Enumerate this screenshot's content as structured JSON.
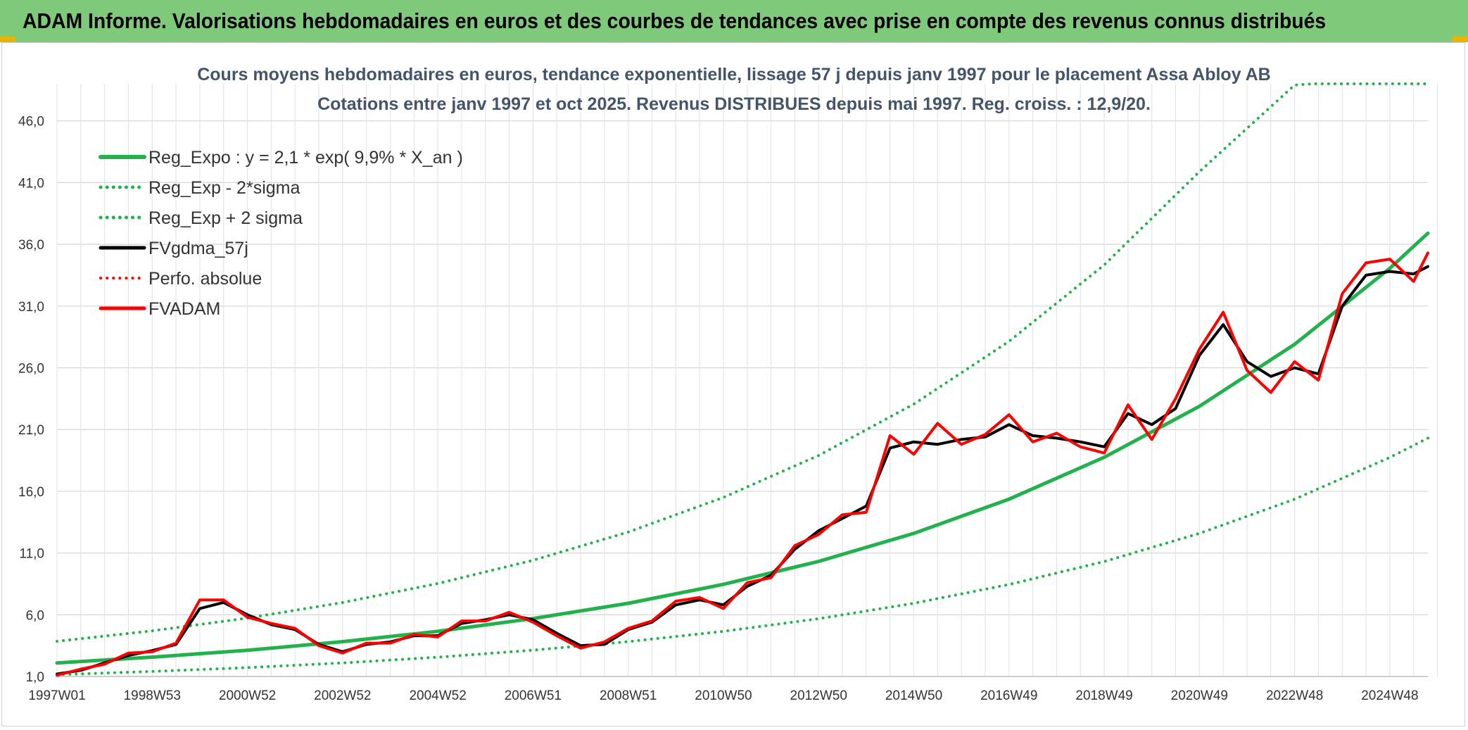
{
  "header": {
    "title": "ADAM Informe. Valorisations hebdomadaires en euros et des courbes de tendances avec prise en compte des revenus connus distribués",
    "background": "#7fc97a"
  },
  "chart_data": {
    "type": "line",
    "title": "Cours moyens hebdomadaires en euros, tendance exponentielle, lissage 57 j depuis janv 1997 pour le placement Assa Abloy AB",
    "subtitle": "Cotations entre janv 1997 et oct 2025. Revenus DISTRIBUES depuis mai 1997. Reg. croiss. : 12,9/20.",
    "xlabel": "",
    "ylabel": "",
    "x_range": [
      1997.0,
      2025.8
    ],
    "ylim": [
      1.0,
      49.0
    ],
    "grid": true,
    "legend_position": "top-left",
    "y_ticks": [
      "1,0",
      "6,0",
      "11,0",
      "16,0",
      "21,0",
      "26,0",
      "31,0",
      "36,0",
      "41,0",
      "46,0"
    ],
    "y_tick_values": [
      1,
      6,
      11,
      16,
      21,
      26,
      31,
      36,
      41,
      46
    ],
    "x_ticks": [
      "1997W01",
      "1998W53",
      "2000W52",
      "2002W52",
      "2004W52",
      "2006W51",
      "2008W51",
      "2010W50",
      "2012W50",
      "2014W50",
      "2016W49",
      "2018W49",
      "2020W49",
      "2022W48",
      "2024W48"
    ],
    "x_tick_values": [
      1997.0,
      1999.0,
      2001.0,
      2003.0,
      2005.0,
      2007.0,
      2009.0,
      2011.0,
      2013.0,
      2015.0,
      2017.0,
      2019.0,
      2021.0,
      2023.0,
      2025.0
    ],
    "series": [
      {
        "name": "Reg_Expo : y = 2,1 * exp( 9,9% *  X_an )",
        "color": "#22b14c",
        "style": "solid",
        "width": 5,
        "x": [
          1997.0,
          1999.0,
          2001.0,
          2003.0,
          2005.0,
          2007.0,
          2009.0,
          2011.0,
          2013.0,
          2015.0,
          2017.0,
          2019.0,
          2021.0,
          2023.0,
          2025.0,
          2025.8
        ],
        "y": [
          2.1,
          2.57,
          3.12,
          3.82,
          4.66,
          5.69,
          6.93,
          8.46,
          10.32,
          12.59,
          15.36,
          18.75,
          22.88,
          27.9,
          34.05,
          36.9
        ]
      },
      {
        "name": "Reg_Exp - 2*sigma",
        "color": "#22b14c",
        "style": "dotted",
        "width": 4,
        "x": [
          1997.0,
          1999.0,
          2001.0,
          2003.0,
          2005.0,
          2007.0,
          2009.0,
          2011.0,
          2013.0,
          2015.0,
          2017.0,
          2019.0,
          2021.0,
          2023.0,
          2025.0,
          2025.8
        ],
        "y": [
          1.15,
          1.41,
          1.72,
          2.1,
          2.56,
          3.13,
          3.82,
          4.66,
          5.68,
          6.93,
          8.45,
          10.31,
          12.59,
          15.36,
          18.74,
          20.3
        ]
      },
      {
        "name": "Reg_Exp + 2 sigma",
        "color": "#22b14c",
        "style": "dotted",
        "width": 4,
        "x": [
          1997.0,
          1999.0,
          2001.0,
          2003.0,
          2005.0,
          2007.0,
          2009.0,
          2011.0,
          2013.0,
          2015.0,
          2017.0,
          2019.0,
          2021.0,
          2023.0,
          2023.4,
          2025.8
        ],
        "y": [
          3.85,
          4.7,
          5.73,
          6.99,
          8.53,
          10.41,
          12.7,
          15.5,
          18.9,
          23.06,
          28.14,
          34.33,
          41.88,
          48.9,
          49.0,
          49.0
        ]
      },
      {
        "name": "FVgdma_57j",
        "color": "#000000",
        "style": "solid",
        "width": 4,
        "x": [
          1997.0,
          1997.5,
          1998.0,
          1998.5,
          1999.0,
          1999.5,
          2000.0,
          2000.5,
          2001.0,
          2001.5,
          2002.0,
          2002.5,
          2003.0,
          2003.5,
          2004.0,
          2004.5,
          2005.0,
          2005.5,
          2006.0,
          2006.5,
          2007.0,
          2007.5,
          2008.0,
          2008.5,
          2009.0,
          2009.5,
          2010.0,
          2010.5,
          2011.0,
          2011.5,
          2012.0,
          2012.5,
          2013.0,
          2013.5,
          2014.0,
          2014.5,
          2015.0,
          2015.5,
          2016.0,
          2016.5,
          2017.0,
          2017.5,
          2018.0,
          2018.5,
          2019.0,
          2019.5,
          2020.0,
          2020.5,
          2021.0,
          2021.5,
          2022.0,
          2022.5,
          2023.0,
          2023.5,
          2024.0,
          2024.5,
          2025.0,
          2025.5,
          2025.8
        ],
        "y": [
          1.2,
          1.5,
          2.1,
          2.7,
          3.1,
          3.6,
          6.5,
          7.0,
          6.0,
          5.2,
          4.8,
          3.6,
          3.0,
          3.6,
          3.8,
          4.3,
          4.3,
          5.3,
          5.6,
          6.0,
          5.6,
          4.5,
          3.5,
          3.6,
          4.8,
          5.4,
          6.8,
          7.2,
          6.8,
          8.3,
          9.2,
          11.3,
          12.8,
          13.8,
          14.8,
          19.5,
          20.0,
          19.8,
          20.2,
          20.4,
          21.4,
          20.5,
          20.3,
          20.0,
          19.6,
          22.3,
          21.4,
          22.7,
          27.0,
          29.5,
          26.5,
          25.3,
          26.0,
          25.5,
          31.0,
          33.5,
          33.8,
          33.6,
          34.2
        ]
      },
      {
        "name": "Perfo. absolue",
        "color": "#ff0000",
        "style": "dotted",
        "width": 3,
        "x": [],
        "y": []
      },
      {
        "name": "FVADAM",
        "color": "#ff0000",
        "style": "solid",
        "width": 4,
        "x": [
          1997.0,
          1997.5,
          1998.0,
          1998.5,
          1999.0,
          1999.5,
          2000.0,
          2000.5,
          2001.0,
          2001.5,
          2002.0,
          2002.5,
          2003.0,
          2003.5,
          2004.0,
          2004.5,
          2005.0,
          2005.5,
          2006.0,
          2006.5,
          2007.0,
          2007.5,
          2008.0,
          2008.5,
          2009.0,
          2009.5,
          2010.0,
          2010.5,
          2011.0,
          2011.5,
          2012.0,
          2012.5,
          2013.0,
          2013.5,
          2014.0,
          2014.5,
          2015.0,
          2015.5,
          2016.0,
          2016.5,
          2017.0,
          2017.5,
          2018.0,
          2018.5,
          2019.0,
          2019.5,
          2020.0,
          2020.5,
          2021.0,
          2021.5,
          2022.0,
          2022.5,
          2023.0,
          2023.5,
          2024.0,
          2024.5,
          2025.0,
          2025.5,
          2025.8
        ],
        "y": [
          1.1,
          1.6,
          2.0,
          2.9,
          3.0,
          3.7,
          7.2,
          7.2,
          5.8,
          5.3,
          4.9,
          3.5,
          2.9,
          3.7,
          3.7,
          4.4,
          4.2,
          5.5,
          5.5,
          6.2,
          5.4,
          4.3,
          3.3,
          3.8,
          4.9,
          5.5,
          7.1,
          7.4,
          6.5,
          8.6,
          9.0,
          11.6,
          12.5,
          14.1,
          14.3,
          20.5,
          19.0,
          21.5,
          19.8,
          20.6,
          22.2,
          20.0,
          20.7,
          19.6,
          19.1,
          23.0,
          20.2,
          23.5,
          27.5,
          30.5,
          25.8,
          24.0,
          26.5,
          25.0,
          32.0,
          34.5,
          34.8,
          33.0,
          35.3
        ]
      }
    ]
  }
}
